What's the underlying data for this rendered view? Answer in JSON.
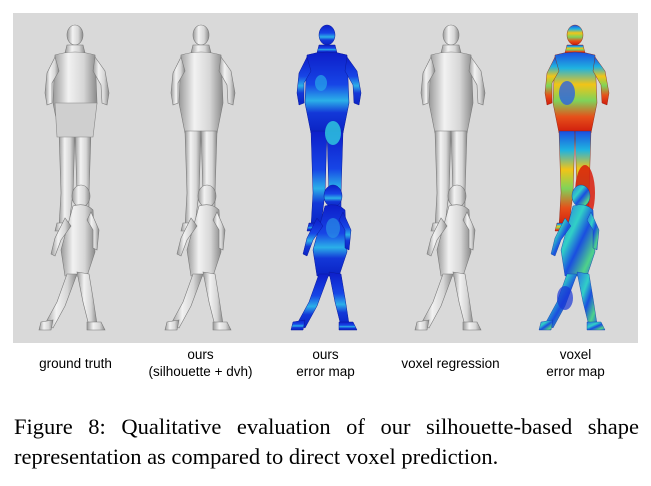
{
  "figure": {
    "columns": [
      {
        "line1": "ground truth",
        "line2": ""
      },
      {
        "line1": "ours",
        "line2": "(silhouette + dvh)"
      },
      {
        "line1": "ours",
        "line2": "error map"
      },
      {
        "line1": "voxel regression",
        "line2": ""
      },
      {
        "line1": "voxel",
        "line2": "error map"
      }
    ],
    "caption": "Figure 8: Qualitative evaluation of our silhouette-based shape representation as compared to direct voxel prediction."
  },
  "colors": {
    "panel_bg": "#d9d9d9",
    "mesh": "#e4e4e4",
    "error_low": "#0a1fcc",
    "error_high": "#d81c0c"
  }
}
